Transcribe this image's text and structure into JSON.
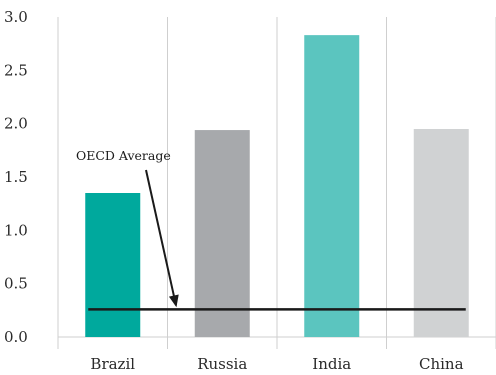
{
  "chart_data": {
    "type": "bar",
    "title": "",
    "xlabel": "",
    "ylabel": "",
    "categories": [
      "Brazil",
      "Russia",
      "India",
      "China"
    ],
    "values": [
      1.35,
      1.94,
      2.83,
      1.95
    ],
    "colors": [
      "#00a99d",
      "#a7a9ac",
      "#5bc5bf",
      "#d0d2d3"
    ],
    "ylim": [
      0,
      3.0
    ],
    "yticks": [
      "0.0",
      "0.5",
      "1.0",
      "1.5",
      "2.0",
      "2.5",
      "3.0"
    ],
    "grid": "vertical-separators",
    "reference_line": {
      "label": "OECD Average",
      "value": 0.25,
      "color": "#1a1a1a"
    }
  }
}
